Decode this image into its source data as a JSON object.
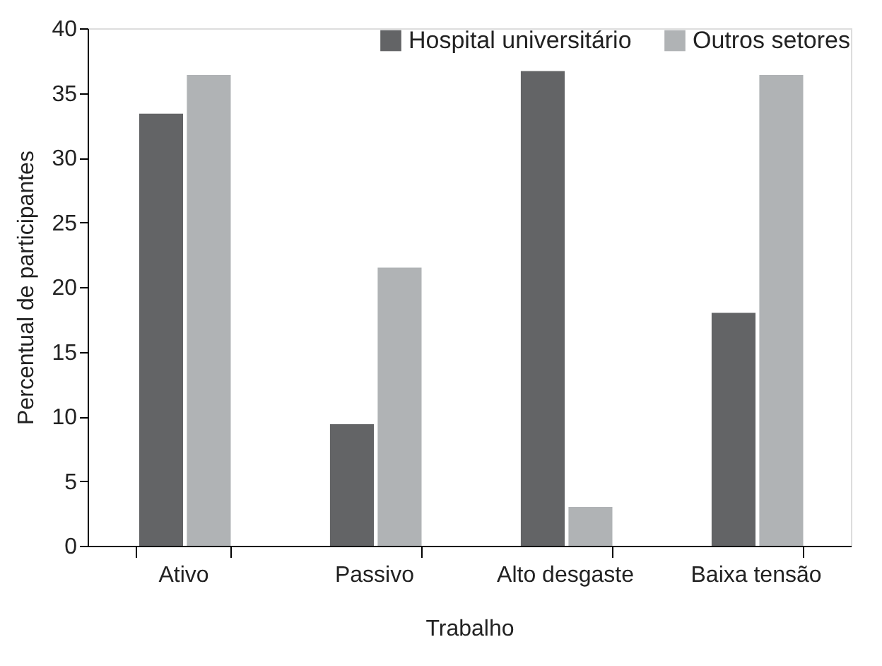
{
  "chart_data": {
    "type": "bar",
    "xlabel": "Trabalho",
    "ylabel": "Percentual de  participantes",
    "categories": [
      "Ativo",
      "Passivo",
      "Alto desgaste",
      "Baixa tensão"
    ],
    "series": [
      {
        "name": "Hospital universitário",
        "color": "#636466",
        "values": [
          33.4,
          9.4,
          36.7,
          18.0
        ]
      },
      {
        "name": "Outros setores",
        "color": "#b0b3b5",
        "values": [
          36.4,
          21.5,
          3.0,
          36.4
        ]
      }
    ],
    "ylim": [
      0,
      40
    ],
    "yticks": [
      0,
      5,
      10,
      15,
      20,
      25,
      30,
      35,
      40
    ],
    "grid": false,
    "legend": "top right"
  }
}
